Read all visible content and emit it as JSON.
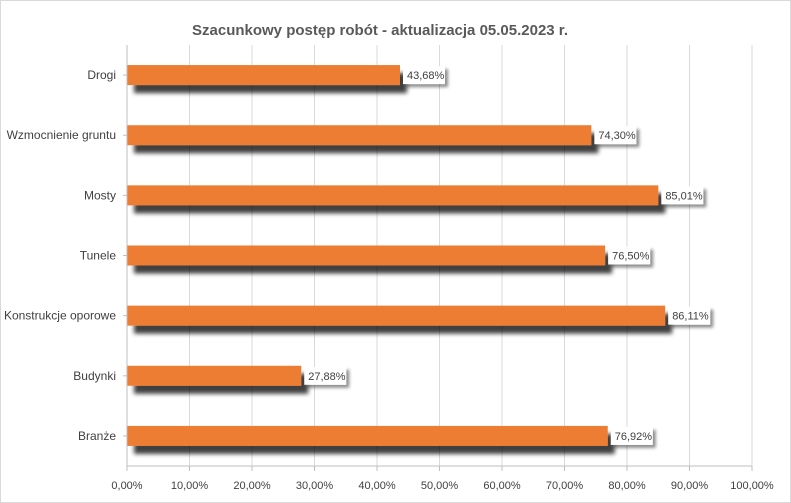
{
  "chart_data": {
    "type": "bar",
    "orientation": "horizontal",
    "title": "Szacunkowy postęp robót - aktualizacja 05.05.2023 r.",
    "categories": [
      "Drogi",
      "Wzmocnienie gruntu",
      "Mosty",
      "Tunele",
      "Konstrukcje oporowe",
      "Budynki",
      "Branże"
    ],
    "values": [
      43.68,
      74.3,
      85.01,
      76.5,
      86.11,
      27.88,
      76.92
    ],
    "data_labels": [
      "43,68%",
      "74,30%",
      "85,01%",
      "76,50%",
      "86,11%",
      "27,88%",
      "76,92%"
    ],
    "xlim": [
      0,
      100
    ],
    "x_ticks": [
      0,
      10,
      20,
      30,
      40,
      50,
      60,
      70,
      80,
      90,
      100
    ],
    "x_tick_labels": [
      "0,00%",
      "10,00%",
      "20,00%",
      "30,00%",
      "40,00%",
      "50,00%",
      "60,00%",
      "70,00%",
      "80,00%",
      "90,00%",
      "100,00%"
    ],
    "xlabel": "",
    "ylabel": "",
    "grid": true,
    "legend": "none",
    "colors": {
      "bar": "#ED7D31",
      "shadow": "#7f7f7f",
      "grid": "#d9d9d9",
      "axis": "#bfbfbf",
      "text": "#404040",
      "title": "#595959"
    }
  }
}
